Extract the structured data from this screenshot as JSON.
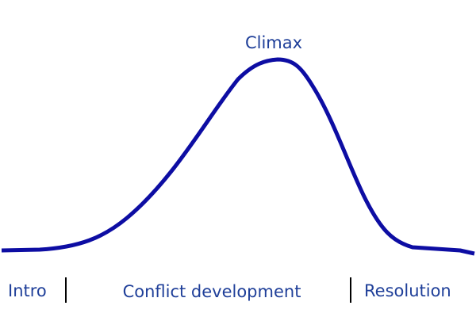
{
  "peak_label": "Climax",
  "sections": [
    "Intro",
    "Conflict development",
    "Resolution"
  ]
}
